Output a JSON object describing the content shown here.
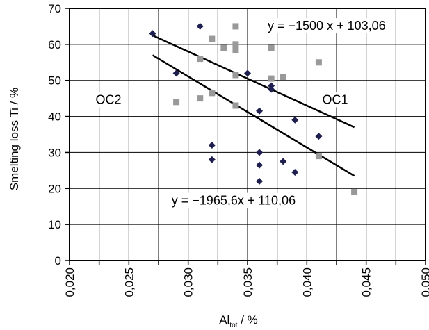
{
  "chart_data": {
    "type": "scatter",
    "ylabel": "Smelting loss Ti / %",
    "xlabel_main": "Al",
    "xlabel_sub": "tot",
    "xlabel_rest": " / %",
    "xlim": [
      0.02,
      0.05
    ],
    "ylim": [
      0,
      70
    ],
    "x_tick_labels": [
      "0,020",
      "0,025",
      "0,030",
      "0,035",
      "0,040",
      "0,045",
      "0,050"
    ],
    "y_tick_labels": [
      "0",
      "10",
      "20",
      "30",
      "40",
      "50",
      "60",
      "70"
    ],
    "grid": true,
    "series": [
      {
        "name": "OC2",
        "marker": "diamond",
        "color": "#1f1f4f",
        "points": [
          [
            0.027,
            63
          ],
          [
            0.029,
            52
          ],
          [
            0.031,
            65
          ],
          [
            0.032,
            32
          ],
          [
            0.032,
            28
          ],
          [
            0.035,
            52
          ],
          [
            0.036,
            41.5
          ],
          [
            0.036,
            30
          ],
          [
            0.036,
            26.5
          ],
          [
            0.036,
            22
          ],
          [
            0.037,
            48.5
          ],
          [
            0.037,
            47.5
          ],
          [
            0.038,
            27.5
          ],
          [
            0.039,
            39
          ],
          [
            0.039,
            24.5
          ],
          [
            0.041,
            34.5
          ]
        ]
      },
      {
        "name": "OC1",
        "marker": "square",
        "color": "#999999",
        "points": [
          [
            0.029,
            44
          ],
          [
            0.031,
            56
          ],
          [
            0.031,
            45
          ],
          [
            0.032,
            61.5
          ],
          [
            0.032,
            46.5
          ],
          [
            0.033,
            59
          ],
          [
            0.034,
            65
          ],
          [
            0.034,
            60
          ],
          [
            0.034,
            58.5
          ],
          [
            0.034,
            51.5
          ],
          [
            0.034,
            43
          ],
          [
            0.037,
            59
          ],
          [
            0.037,
            50.5
          ],
          [
            0.038,
            51
          ],
          [
            0.041,
            55
          ],
          [
            0.041,
            29
          ],
          [
            0.044,
            19
          ]
        ]
      }
    ],
    "trendlines": [
      {
        "x": [
          0.027,
          0.044
        ],
        "y": [
          62.5,
          37
        ]
      },
      {
        "x": [
          0.027,
          0.044
        ],
        "y": [
          57,
          23.5
        ]
      }
    ],
    "annotations": [
      {
        "text": "y = −1500 x + 103,06",
        "x": 0.0367,
        "y": 64
      },
      {
        "text": "y = −1965,6x + 110,06",
        "x": 0.0286,
        "y": 15.5
      },
      {
        "text": "OC2",
        "x": 0.0222,
        "y": 43.5
      },
      {
        "text": "OC1",
        "x": 0.0413,
        "y": 43.5
      }
    ]
  }
}
